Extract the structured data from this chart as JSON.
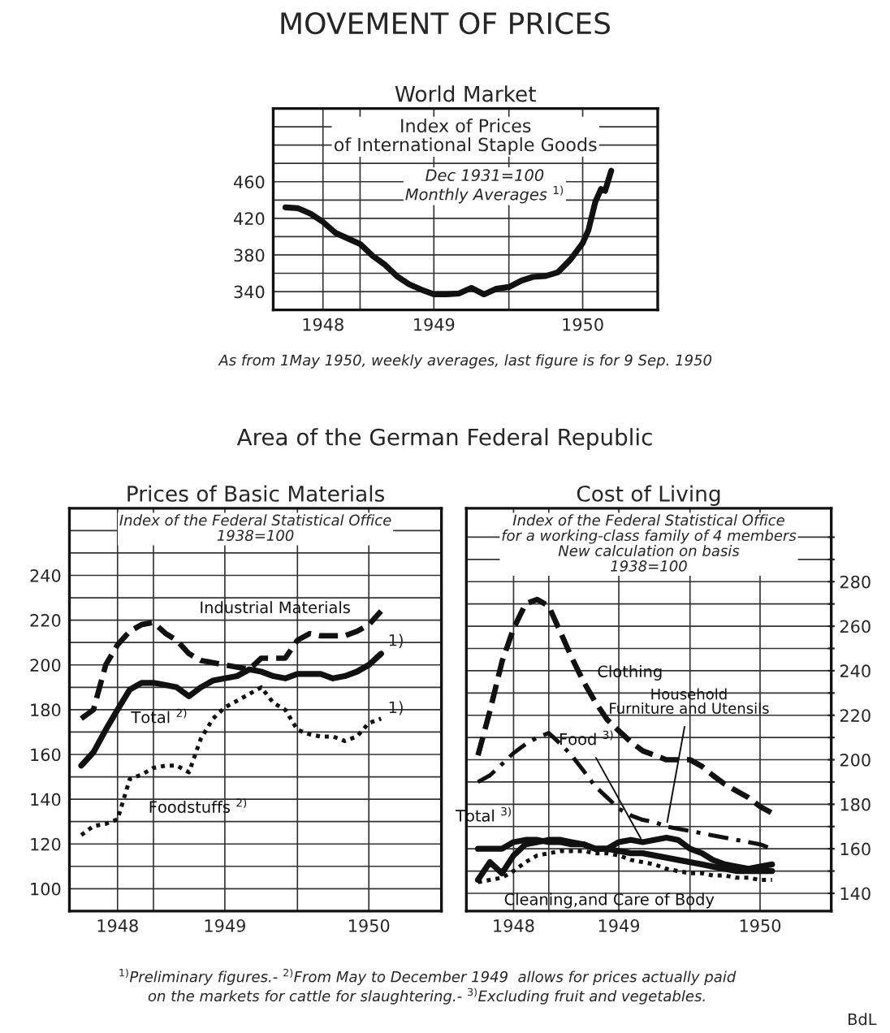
{
  "chart_data": [
    {
      "type": "line",
      "title": "MOVEMENT OF PRICES",
      "subtitle": "World Market",
      "annotations": [
        "Index of Prices\nof International Staple Goods",
        "Dec 1931=100\nMonthly Averages $^{1)}$",
        "As from 1May 1950, weekly averages, last figure is for 9 Sep. 1950"
      ],
      "x": [
        "1948-07",
        "1948-08",
        "1948-09",
        "1948-10",
        "1948-11",
        "1948-12",
        "1949-01",
        "1949-02",
        "1949-03",
        "1949-04",
        "1949-05",
        "1949-06",
        "1949-07",
        "1949-08",
        "1949-09",
        "1949-10",
        "1949-11",
        "1949-12",
        "1950-01",
        "1950-02",
        "1950-03",
        "1950-04",
        "1950-05",
        "1950-06",
        "1950-07",
        "1950-07-15",
        "1950-08-01",
        "1950-08-15",
        "1950-08-25",
        "1950-09-09"
      ],
      "series": [
        {
          "color": "#111111",
          "line_style": "solid",
          "values": [
            432,
            431,
            425,
            416,
            404,
            398,
            392,
            379,
            370,
            357,
            348,
            342,
            337,
            337,
            338,
            344,
            337,
            343,
            345,
            352,
            356,
            357,
            361,
            375,
            393,
            407,
            438,
            452,
            450,
            472
          ]
        }
      ],
      "xlim": [
        "1948-06",
        "1951-01"
      ],
      "xticks": [
        {
          "value": "1948-10",
          "label": "1948"
        },
        {
          "value": "1949-01",
          "label": null
        },
        {
          "value": "1949-07",
          "label": "1949"
        },
        {
          "value": "1950-01",
          "label": null
        },
        {
          "value": "1950-07",
          "label": "1950"
        }
      ],
      "ylim": [
        320,
        540
      ],
      "yticks": [
        340,
        {
          "value": 360,
          "label": null
        },
        380,
        {
          "value": 400,
          "label": null
        },
        420,
        {
          "value": 440,
          "label": null
        },
        460,
        {
          "value": 480,
          "label": null
        },
        {
          "value": 500,
          "label": null
        },
        {
          "value": 520,
          "label": null
        }
      ],
      "grid": true,
      "legend": false
    },
    {
      "type": "line",
      "title": "Area of the German Federal Republic",
      "subtitle": "Prices of Basic Materials",
      "annotations": [
        "Index of the Federal Statistical Office\n1938=100",
        {
          "text": "1)",
          "x": "1950-08",
          "y": 205
        },
        {
          "text": "1)",
          "x": "1950-08",
          "y": 175
        }
      ],
      "x": [
        "1948-07",
        "1948-08",
        "1948-09",
        "1948-10",
        "1948-11",
        "1948-12",
        "1949-01",
        "1949-02",
        "1949-03",
        "1949-04",
        "1949-05",
        "1949-06",
        "1949-07",
        "1949-08",
        "1949-09",
        "1949-10",
        "1949-11",
        "1949-12",
        "1950-01",
        "1950-02",
        "1950-03",
        "1950-04",
        "1950-05",
        "1950-06",
        "1950-07",
        "1950-08"
      ],
      "series": [
        {
          "name": "Industrial Materials",
          "color": "#111111",
          "line_style": "dashed",
          "values": [
            176,
            180,
            200,
            209,
            215,
            218,
            219,
            214,
            211,
            205,
            202,
            201,
            200,
            199,
            198,
            203,
            203,
            203,
            211,
            214,
            213,
            213,
            213,
            215,
            218,
            224
          ]
        },
        {
          "name": "Total $^{2)}$",
          "color": "#111111",
          "line_style": "solid",
          "values": [
            155,
            161,
            171,
            180,
            189,
            192,
            192,
            191,
            190,
            186,
            190,
            193,
            194,
            195,
            198,
            197,
            195,
            194,
            196,
            196,
            196,
            194,
            195,
            197,
            200,
            205
          ]
        },
        {
          "name": "Foodstuffs $^{2)}$",
          "color": "#111111",
          "line_style": "dotted",
          "values": [
            124,
            128,
            129,
            131,
            149,
            151,
            154,
            155,
            155,
            152,
            167,
            176,
            181,
            184,
            187,
            190,
            183,
            180,
            171,
            169,
            168,
            168,
            166,
            168,
            174,
            176
          ]
        }
      ],
      "xlim": [
        "1948-06",
        "1951-01"
      ],
      "xticks": [
        {
          "value": "1948-10",
          "label": "1948"
        },
        {
          "value": "1949-01",
          "label": null
        },
        {
          "value": "1949-07",
          "label": "1949"
        },
        {
          "value": "1950-01",
          "label": null
        },
        {
          "value": "1950-07",
          "label": "1950"
        }
      ],
      "ylim": [
        90,
        270
      ],
      "yticks": [
        100,
        {
          "value": 110,
          "label": null
        },
        120,
        {
          "value": 130,
          "label": null
        },
        140,
        {
          "value": 150,
          "label": null
        },
        160,
        {
          "value": 170,
          "label": null
        },
        180,
        {
          "value": 190,
          "label": null
        },
        200,
        {
          "value": 210,
          "label": null
        },
        220,
        {
          "value": 230,
          "label": null
        },
        240,
        {
          "value": 250,
          "label": null
        },
        {
          "value": 260,
          "label": null
        }
      ],
      "grid": true,
      "legend": false
    },
    {
      "type": "line",
      "subtitle": "Cost of Living",
      "annotations": [
        "Index of the Federal Statistical Office\nfor a working-class family of 4 members\nNew calculation on basis\n1938=100",
        "$^{1)}$Preliminary figures.- $^{2)}$From May to December 1949  allows for prices actually paid\non the markets for cattle for slaughtering.- $^{3)}$Excluding fruit and vegetables.",
        "BdL"
      ],
      "x": [
        "1948-07",
        "1948-08",
        "1948-09",
        "1948-10",
        "1948-11",
        "1948-12",
        "1949-01",
        "1949-02",
        "1949-03",
        "1949-04",
        "1949-05",
        "1949-06",
        "1949-07",
        "1949-08",
        "1949-09",
        "1949-10",
        "1949-11",
        "1949-12",
        "1950-01",
        "1950-02",
        "1950-03",
        "1950-04",
        "1950-05",
        "1950-06",
        "1950-07",
        "1950-08"
      ],
      "series": [
        {
          "name": "Clothing",
          "color": "#111111",
          "line_style": "dashed",
          "values": [
            202,
            222,
            244,
            259,
            270,
            272,
            269,
            257,
            246,
            235,
            226,
            218,
            213,
            208,
            204,
            202,
            200,
            200,
            200,
            197,
            193,
            189,
            186,
            183,
            179,
            176
          ]
        },
        {
          "name": "Household\nFurniture and Utensils",
          "color": "#111111",
          "line_style": "dashdot",
          "values": [
            190,
            193,
            198,
            203,
            207,
            210,
            212,
            207,
            202,
            195,
            188,
            183,
            178,
            175,
            173,
            172,
            170,
            169,
            168,
            167,
            166,
            165,
            164,
            163,
            162,
            160
          ]
        },
        {
          "name": "Food $^{3)}$",
          "color": "#111111",
          "line_style": "solid",
          "values": [
            146,
            154,
            149,
            157,
            162,
            163,
            164,
            164,
            163,
            162,
            160,
            160,
            163,
            164,
            163,
            164,
            165,
            164,
            160,
            158,
            155,
            153,
            152,
            151,
            152,
            153
          ]
        },
        {
          "name": "Total $^{3)}$",
          "color": "#111111",
          "line_style": "solid",
          "values": [
            160,
            160,
            160,
            163,
            164,
            164,
            163,
            163,
            162,
            162,
            160,
            160,
            159,
            158,
            158,
            157,
            156,
            155,
            154,
            153,
            152,
            151,
            150,
            150,
            150,
            150
          ]
        },
        {
          "name": "Cleaning,and Care of Body",
          "color": "#111111",
          "line_style": "dotted",
          "values": [
            145,
            146,
            147,
            150,
            154,
            157,
            158,
            159,
            159,
            159,
            158,
            158,
            157,
            155,
            154,
            153,
            151,
            150,
            149,
            149,
            148,
            148,
            147,
            147,
            146,
            146
          ]
        }
      ],
      "xlim": [
        "1948-06",
        "1951-01"
      ],
      "xticks": [
        {
          "value": "1948-10",
          "label": "1948"
        },
        {
          "value": "1949-01",
          "label": null
        },
        {
          "value": "1949-07",
          "label": "1949"
        },
        {
          "value": "1950-01",
          "label": null
        },
        {
          "value": "1950-07",
          "label": "1950"
        }
      ],
      "ylim": [
        132,
        313
      ],
      "yticks": [
        140,
        {
          "value": 150,
          "label": null
        },
        160,
        {
          "value": 170,
          "label": null
        },
        180,
        {
          "value": 190,
          "label": null
        },
        200,
        {
          "value": 210,
          "label": null
        },
        220,
        {
          "value": 230,
          "label": null
        },
        240,
        {
          "value": 250,
          "label": null
        },
        260,
        {
          "value": 270,
          "label": null
        },
        280,
        {
          "value": 290,
          "label": null
        },
        {
          "value": 300,
          "label": null
        }
      ],
      "grid": true,
      "legend": false
    }
  ]
}
